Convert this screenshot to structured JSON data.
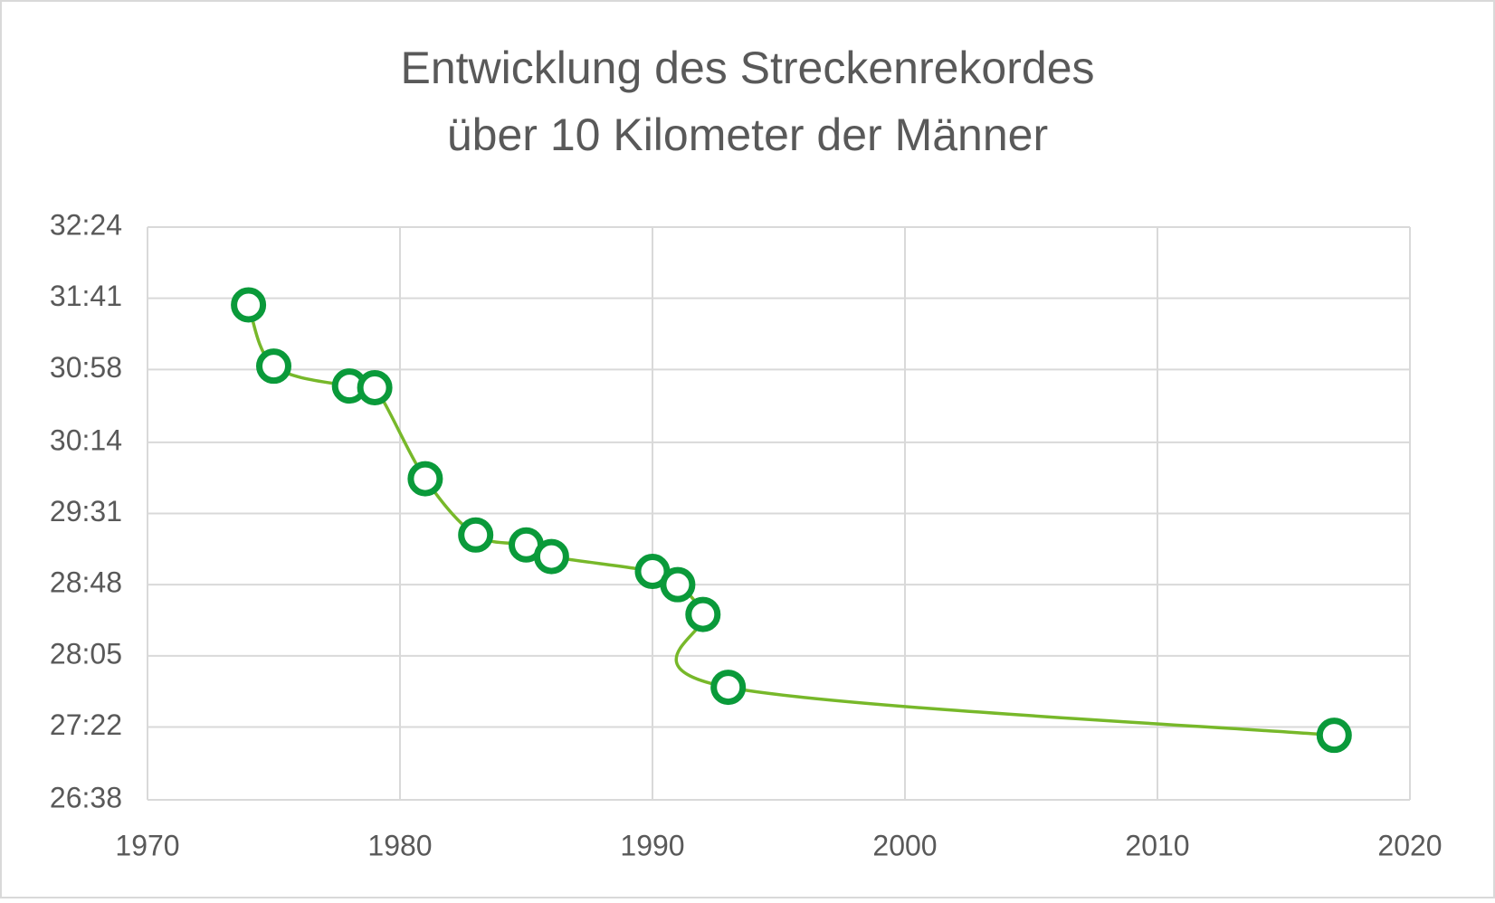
{
  "chart_data": {
    "type": "line",
    "title": [
      "Entwicklung des Streckenrekordes",
      "über 10 Kilometer der Männer"
    ],
    "x": [
      1974,
      1975,
      1978,
      1979,
      1981,
      1983,
      1985,
      1986,
      1990,
      1991,
      1992,
      1993,
      2017
    ],
    "series": [
      {
        "color": "#77b82a",
        "marker_color": "#0a9a3a",
        "values": [
          1897,
          1860,
          1848,
          1847,
          1792,
          1758,
          1752,
          1745,
          1736,
          1728,
          1710,
          1666,
          1637
        ]
      }
    ],
    "xlim": [
      1970,
      2020
    ],
    "xticks": [
      1970,
      1980,
      1990,
      2000,
      2010,
      2020
    ],
    "ylim": [
      1598,
      1944
    ],
    "yticks": [
      {
        "value": 1598,
        "label": "26:38"
      },
      {
        "value": 1642,
        "label": "27:22"
      },
      {
        "value": 1685,
        "label": "28:05"
      },
      {
        "value": 1728,
        "label": "28:48"
      },
      {
        "value": 1771,
        "label": "29:31"
      },
      {
        "value": 1814,
        "label": "30:14"
      },
      {
        "value": 1858,
        "label": "30:58"
      },
      {
        "value": 1901,
        "label": "31:41"
      },
      {
        "value": 1944,
        "label": "32:24"
      }
    ],
    "grid": true,
    "smooth": true
  }
}
